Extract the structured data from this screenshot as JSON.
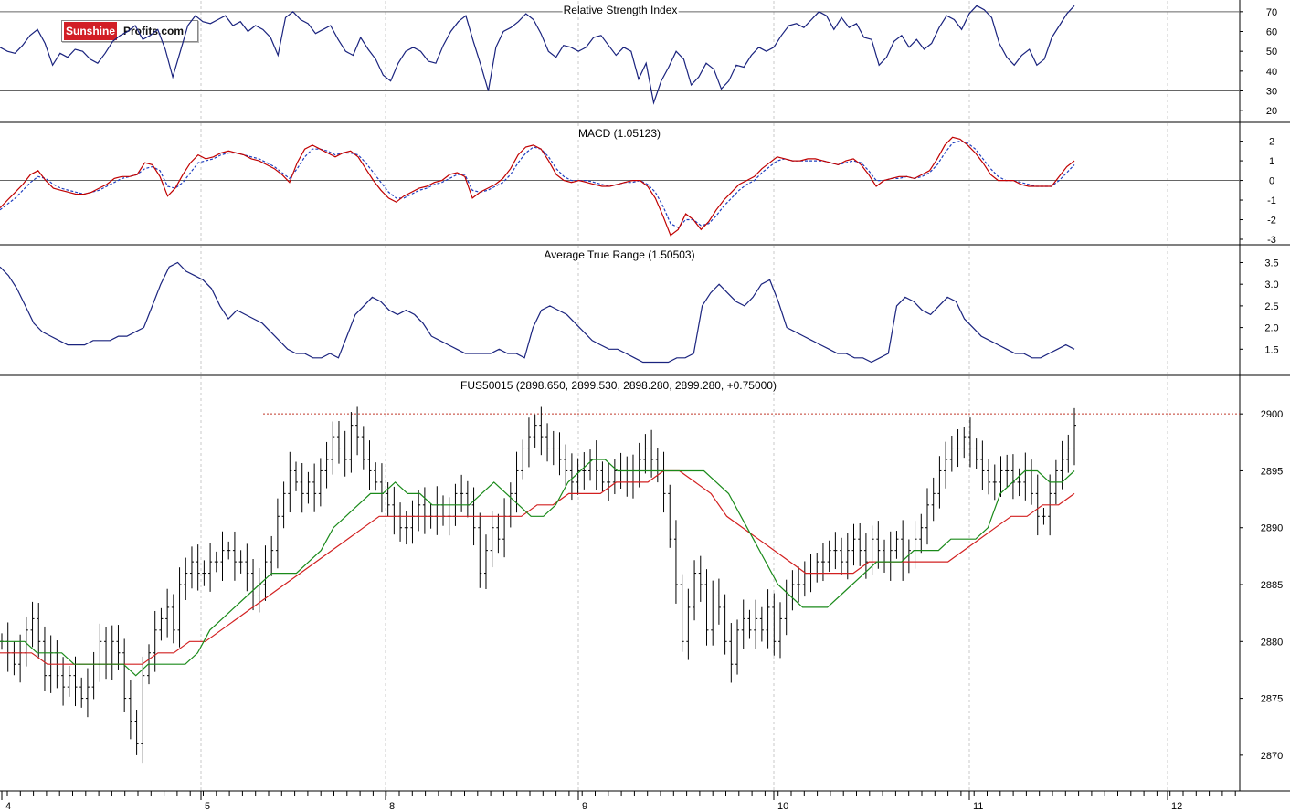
{
  "logo": {
    "part1": "Sunshine",
    "part2": "Profits.com"
  },
  "chart_data": [
    {
      "type": "line",
      "title": "Relative Strength Index",
      "ylim": [
        15,
        75
      ],
      "yticks": [
        20,
        30,
        40,
        50,
        60,
        70
      ],
      "reference_lines": [
        70,
        30
      ],
      "series": [
        {
          "color": "#1a237e",
          "values": [
            52,
            50,
            49,
            53,
            58,
            61,
            54,
            43,
            49,
            47,
            51,
            50,
            46,
            44,
            49,
            55,
            58,
            60,
            63,
            56,
            58,
            61,
            51,
            37,
            50,
            63,
            68,
            65,
            64,
            66,
            68,
            63,
            65,
            60,
            63,
            61,
            57,
            48,
            67,
            70,
            66,
            64,
            59,
            61,
            63,
            56,
            50,
            48,
            57,
            51,
            46,
            38,
            35,
            44,
            50,
            52,
            50,
            45,
            44,
            53,
            60,
            65,
            68,
            55,
            43,
            30,
            52,
            60,
            62,
            65,
            69,
            66,
            59,
            50,
            47,
            53,
            52,
            50,
            52,
            57,
            58,
            53,
            48,
            52,
            50,
            36,
            44,
            24,
            35,
            42,
            50,
            46,
            33,
            37,
            44,
            41,
            31,
            35,
            43,
            42,
            48,
            52,
            50,
            52,
            58,
            63,
            64,
            62,
            66,
            70,
            68,
            61,
            67,
            62,
            64,
            57,
            56,
            43,
            47,
            55,
            58,
            52,
            56,
            51,
            54,
            62,
            68,
            66,
            61,
            69,
            73,
            71,
            67,
            54,
            47,
            43,
            48,
            51,
            43,
            46,
            57,
            63,
            69,
            73
          ]
        }
      ]
    },
    {
      "type": "line",
      "title": "MACD (1.05123)",
      "ylim": [
        -3,
        2.4
      ],
      "yticks": [
        2,
        1,
        0,
        -1,
        -2,
        -3
      ],
      "zero_line": true,
      "series": [
        {
          "name": "MACD",
          "color": "#c00000",
          "values": [
            -1.4,
            -1.0,
            -0.6,
            -0.2,
            0.3,
            0.5,
            0.0,
            -0.4,
            -0.5,
            -0.6,
            -0.7,
            -0.7,
            -0.6,
            -0.4,
            -0.2,
            0.1,
            0.2,
            0.2,
            0.3,
            0.9,
            0.8,
            0.2,
            -0.8,
            -0.4,
            0.3,
            0.9,
            1.3,
            1.1,
            1.2,
            1.4,
            1.5,
            1.4,
            1.3,
            1.1,
            1.0,
            0.8,
            0.6,
            0.3,
            -0.1,
            0.9,
            1.6,
            1.8,
            1.6,
            1.4,
            1.2,
            1.4,
            1.5,
            1.2,
            0.6,
            0.0,
            -0.5,
            -0.9,
            -1.1,
            -0.8,
            -0.6,
            -0.4,
            -0.3,
            -0.1,
            0.0,
            0.3,
            0.4,
            0.2,
            -0.9,
            -0.6,
            -0.4,
            -0.2,
            0.1,
            0.6,
            1.3,
            1.7,
            1.8,
            1.6,
            1.0,
            0.3,
            0.0,
            -0.1,
            0.0,
            -0.1,
            -0.2,
            -0.3,
            -0.3,
            -0.2,
            -0.1,
            0.0,
            0.0,
            -0.3,
            -0.9,
            -1.8,
            -2.8,
            -2.5,
            -1.7,
            -2.0,
            -2.5,
            -2.1,
            -1.5,
            -1.0,
            -0.6,
            -0.2,
            0.0,
            0.2,
            0.6,
            0.9,
            1.2,
            1.1,
            1.0,
            1.0,
            1.1,
            1.1,
            1.0,
            0.9,
            0.8,
            1.0,
            1.1,
            0.8,
            0.3,
            -0.3,
            0.0,
            0.1,
            0.2,
            0.2,
            0.1,
            0.3,
            0.5,
            1.1,
            1.8,
            2.2,
            2.1,
            1.8,
            1.4,
            0.9,
            0.3,
            0.0,
            0.0,
            0.0,
            -0.2,
            -0.3,
            -0.3,
            -0.3,
            -0.3,
            0.2,
            0.7,
            1.0
          ]
        },
        {
          "name": "Signal",
          "color": "#1f3fbf",
          "dashed": true,
          "values": [
            -1.5,
            -1.2,
            -0.9,
            -0.5,
            -0.1,
            0.2,
            0.1,
            -0.2,
            -0.4,
            -0.5,
            -0.6,
            -0.7,
            -0.6,
            -0.5,
            -0.3,
            -0.1,
            0.1,
            0.2,
            0.3,
            0.6,
            0.7,
            0.5,
            -0.3,
            -0.4,
            -0.1,
            0.4,
            0.9,
            1.0,
            1.1,
            1.3,
            1.4,
            1.4,
            1.3,
            1.2,
            1.1,
            0.9,
            0.7,
            0.4,
            0.1,
            0.6,
            1.2,
            1.6,
            1.6,
            1.5,
            1.3,
            1.4,
            1.4,
            1.3,
            0.9,
            0.4,
            -0.1,
            -0.6,
            -0.9,
            -0.9,
            -0.7,
            -0.5,
            -0.4,
            -0.2,
            -0.1,
            0.1,
            0.3,
            0.3,
            -0.5,
            -0.6,
            -0.5,
            -0.3,
            -0.1,
            0.3,
            0.9,
            1.4,
            1.7,
            1.6,
            1.2,
            0.6,
            0.2,
            0.0,
            0.0,
            0.0,
            -0.1,
            -0.2,
            -0.3,
            -0.2,
            -0.1,
            -0.1,
            0.0,
            -0.2,
            -0.6,
            -1.3,
            -2.2,
            -2.4,
            -2.0,
            -2.0,
            -2.3,
            -2.2,
            -1.8,
            -1.3,
            -0.9,
            -0.5,
            -0.2,
            0.0,
            0.4,
            0.7,
            1.0,
            1.1,
            1.0,
            1.0,
            1.0,
            1.0,
            1.0,
            0.9,
            0.8,
            0.9,
            1.0,
            0.9,
            0.5,
            0.0,
            0.0,
            0.1,
            0.1,
            0.2,
            0.1,
            0.2,
            0.4,
            0.8,
            1.4,
            1.9,
            2.0,
            1.9,
            1.6,
            1.1,
            0.6,
            0.2,
            0.0,
            0.0,
            -0.1,
            -0.2,
            -0.3,
            -0.3,
            -0.3,
            0.0,
            0.4,
            0.8
          ]
        }
      ]
    },
    {
      "type": "line",
      "title": "Average True Range (1.50503)",
      "ylim": [
        1.0,
        3.7
      ],
      "yticks": [
        3.5,
        3.0,
        2.5,
        2.0,
        1.5
      ],
      "series": [
        {
          "color": "#1a237e",
          "values": [
            3.4,
            3.2,
            2.9,
            2.5,
            2.1,
            1.9,
            1.8,
            1.7,
            1.6,
            1.6,
            1.6,
            1.7,
            1.7,
            1.7,
            1.8,
            1.8,
            1.9,
            2.0,
            2.5,
            3.0,
            3.4,
            3.5,
            3.3,
            3.2,
            3.1,
            2.9,
            2.5,
            2.2,
            2.4,
            2.3,
            2.2,
            2.1,
            1.9,
            1.7,
            1.5,
            1.4,
            1.4,
            1.3,
            1.3,
            1.4,
            1.3,
            1.8,
            2.3,
            2.5,
            2.7,
            2.6,
            2.4,
            2.3,
            2.4,
            2.3,
            2.1,
            1.8,
            1.7,
            1.6,
            1.5,
            1.4,
            1.4,
            1.4,
            1.4,
            1.5,
            1.4,
            1.4,
            1.3,
            2.0,
            2.4,
            2.5,
            2.4,
            2.3,
            2.1,
            1.9,
            1.7,
            1.6,
            1.5,
            1.5,
            1.4,
            1.3,
            1.2,
            1.2,
            1.2,
            1.2,
            1.3,
            1.3,
            1.4,
            2.5,
            2.8,
            3.0,
            2.8,
            2.6,
            2.5,
            2.7,
            3.0,
            3.1,
            2.6,
            2.0,
            1.9,
            1.8,
            1.7,
            1.6,
            1.5,
            1.4,
            1.4,
            1.3,
            1.3,
            1.2,
            1.3,
            1.4,
            2.5,
            2.7,
            2.6,
            2.4,
            2.3,
            2.5,
            2.7,
            2.6,
            2.2,
            2.0,
            1.8,
            1.7,
            1.6,
            1.5,
            1.4,
            1.4,
            1.3,
            1.3,
            1.4,
            1.5,
            1.6,
            1.5
          ]
        }
      ]
    },
    {
      "type": "candlestick",
      "title": "FUS50015 (2898.650, 2899.530, 2898.280, 2899.280, +0.75000)",
      "ylim": [
        2867.5,
        2901.7
      ],
      "yticks": [
        2900,
        2895,
        2890,
        2885,
        2880,
        2875,
        2870
      ],
      "reference_line": 2900.0,
      "close": [
        2880,
        2879,
        2878,
        2879,
        2881,
        2882,
        2880,
        2877,
        2879,
        2877,
        2876,
        2877,
        2876,
        2875,
        2876,
        2878,
        2880,
        2878,
        2880,
        2879,
        2875,
        2873,
        2871,
        2877,
        2879,
        2881,
        2882,
        2883,
        2881,
        2885,
        2886,
        2887,
        2886,
        2886,
        2887,
        2887,
        2888,
        2888,
        2887,
        2887,
        2886,
        2884,
        2885,
        2887,
        2888,
        2891,
        2893,
        2895,
        2894,
        2893,
        2894,
        2893,
        2895,
        2896,
        2898,
        2897,
        2896,
        2899,
        2898,
        2896,
        2895,
        2894,
        2893,
        2892,
        2891,
        2890,
        2890,
        2891,
        2892,
        2891,
        2891,
        2892,
        2891,
        2891,
        2893,
        2893,
        2892,
        2890,
        2886,
        2888,
        2890,
        2889,
        2891,
        2893,
        2895,
        2897,
        2898,
        2899,
        2898,
        2897,
        2897,
        2896,
        2895,
        2894,
        2895,
        2895,
        2896,
        2895,
        2894,
        2894,
        2895,
        2895,
        2894,
        2895,
        2896,
        2897,
        2896,
        2895,
        2893,
        2889,
        2885,
        2880,
        2883,
        2886,
        2885,
        2881,
        2884,
        2883,
        2880,
        2878,
        2881,
        2882,
        2881,
        2882,
        2881,
        2883,
        2880,
        2882,
        2884,
        2885,
        2885,
        2886,
        2886,
        2887,
        2887,
        2888,
        2888,
        2887,
        2888,
        2889,
        2888,
        2887,
        2889,
        2888,
        2887,
        2888,
        2889,
        2887,
        2888,
        2889,
        2890,
        2892,
        2893,
        2895,
        2896,
        2897,
        2897,
        2898,
        2897,
        2896,
        2895,
        2894,
        2894,
        2895,
        2895,
        2894,
        2894,
        2895,
        2893,
        2891,
        2891,
        2893,
        2895,
        2896,
        2897,
        2899
      ],
      "sma_short": {
        "color": "#1a8a1a",
        "values": [
          2880,
          2880,
          2880,
          2879,
          2879,
          2879,
          2878,
          2878,
          2878,
          2878,
          2878,
          2877,
          2878,
          2878,
          2878,
          2878,
          2879,
          2881,
          2882,
          2883,
          2884,
          2885,
          2886,
          2886,
          2886,
          2887,
          2888,
          2890,
          2891,
          2892,
          2893,
          2893,
          2894,
          2893,
          2893,
          2892,
          2892,
          2892,
          2892,
          2893,
          2894,
          2893,
          2892,
          2891,
          2891,
          2892,
          2894,
          2895,
          2896,
          2896,
          2895,
          2895,
          2895,
          2895,
          2895,
          2895,
          2895,
          2895,
          2894,
          2893,
          2891,
          2889,
          2887,
          2885,
          2884,
          2883,
          2883,
          2883,
          2884,
          2885,
          2886,
          2887,
          2887,
          2887,
          2888,
          2888,
          2888,
          2889,
          2889,
          2889,
          2890,
          2893,
          2894,
          2895,
          2895,
          2894,
          2894,
          2895
        ]
      },
      "sma_long": {
        "color": "#d22020",
        "values": [
          2879,
          2879,
          2879,
          2878,
          2878,
          2878,
          2878,
          2878,
          2878,
          2878,
          2879,
          2879,
          2880,
          2880,
          2881,
          2882,
          2883,
          2884,
          2885,
          2886,
          2887,
          2888,
          2889,
          2890,
          2891,
          2891,
          2891,
          2891,
          2891,
          2891,
          2891,
          2891,
          2891,
          2891,
          2892,
          2892,
          2893,
          2893,
          2893,
          2894,
          2894,
          2894,
          2895,
          2895,
          2894,
          2893,
          2891,
          2890,
          2889,
          2888,
          2887,
          2886,
          2886,
          2886,
          2886,
          2887,
          2887,
          2887,
          2887,
          2887,
          2887,
          2888,
          2889,
          2890,
          2891,
          2891,
          2892,
          2892,
          2893
        ]
      }
    }
  ],
  "x_axis": {
    "labels": [
      "4",
      "5",
      "8",
      "9",
      "10",
      "11",
      "12"
    ]
  }
}
